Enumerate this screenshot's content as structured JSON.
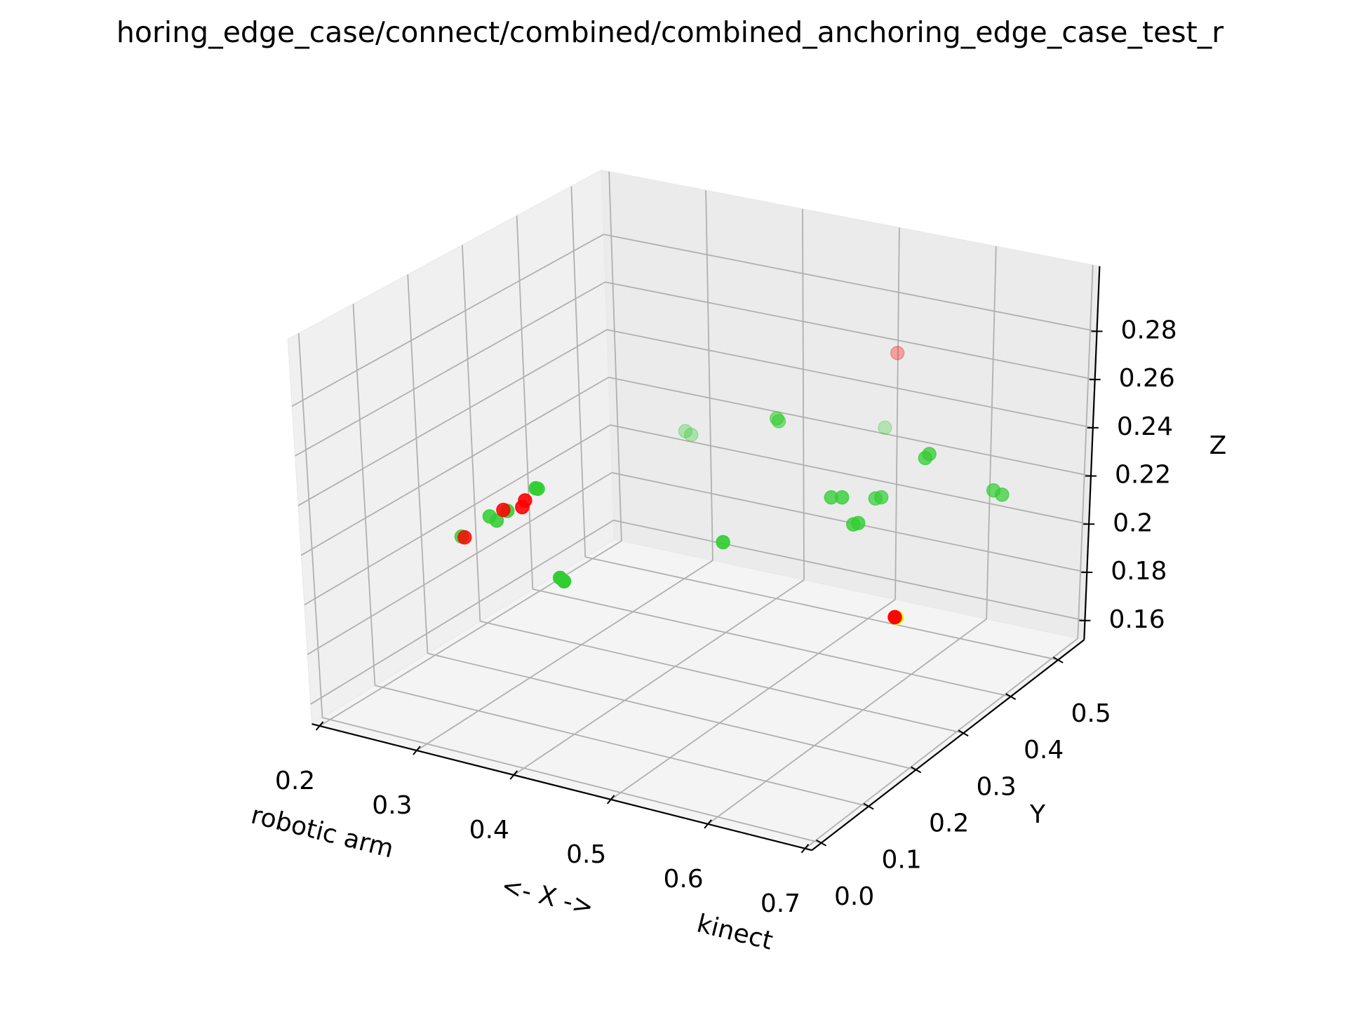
{
  "chart_data": {
    "type": "scatter3d",
    "title": "horing_edge_case/connect/combined/combined_anchoring_edge_case_test_r",
    "xlabel": "<- X ->",
    "ylabel": "Y",
    "zlabel": "Z",
    "annotations": [
      "robotic arm",
      "kinect"
    ],
    "xlim": [
      0.192,
      0.707
    ],
    "ylim": [
      -0.02,
      0.555
    ],
    "zlim": [
      0.152,
      0.307
    ],
    "xticks": [
      0.2,
      0.3,
      0.4,
      0.5,
      0.6,
      0.7
    ],
    "yticks": [
      {
        "value": 0,
        "label": "0.0"
      },
      0.1,
      0.2,
      0.3,
      0.4,
      0.5
    ],
    "zticks": [
      0.16,
      0.18,
      0.2,
      0.22,
      0.24,
      0.26,
      0.28
    ],
    "grid": true,
    "series": [
      {
        "color": "#32cd32",
        "x": [
          0.369,
          0.375,
          0.494,
          0.496,
          0.517,
          0.646,
          0.65,
          0.579,
          0.59,
          0.596,
          0.602,
          0.689,
          0.698,
          0.602,
          0.607,
          0.527,
          0.421,
          0.425,
          0.308,
          0.337,
          0.344,
          0.355,
          0.384,
          0.386
        ],
        "y": [
          0.383,
          0.383,
          0.325,
          0.325,
          0.498,
          0.325,
          0.325,
          0.268,
          0.268,
          0.325,
          0.325,
          0.383,
          0.383,
          0.268,
          0.268,
          0.153,
          0.038,
          0.038,
          0.066,
          0.066,
          0.066,
          0.066,
          0.066,
          0.066
        ],
        "z": [
          0.235,
          0.234,
          0.259,
          0.258,
          0.233,
          0.256,
          0.258,
          0.242,
          0.243,
          0.235,
          0.236,
          0.238,
          0.237,
          0.233,
          0.234,
          0.235,
          0.226,
          0.225,
          0.228,
          0.239,
          0.238,
          0.243,
          0.255,
          0.255
        ]
      },
      {
        "color": "#ffff00",
        "x": [
          0.677
        ],
        "y": [
          0.21
        ],
        "z": [
          0.21
        ]
      },
      {
        "color": "#ff0000",
        "x": [
          0.529,
          0.311,
          0.351,
          0.37,
          0.373,
          0.675
        ],
        "y": [
          0.498,
          0.066,
          0.066,
          0.066,
          0.066,
          0.21
        ],
        "z": [
          0.265,
          0.228,
          0.243,
          0.246,
          0.249,
          0.21
        ]
      }
    ]
  }
}
